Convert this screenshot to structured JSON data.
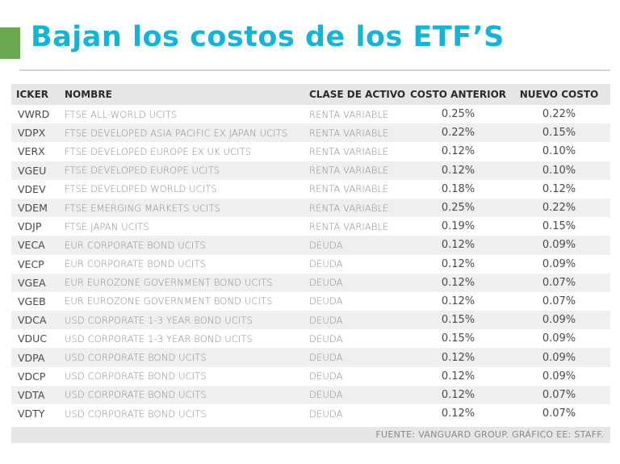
{
  "title": "Bajan los costos de los ETF’S",
  "accent_color": "#6aa84f",
  "title_color": "#12b4d8",
  "source": "FUENTE: VANGUARD GROUP. GRÁFICO EE: STAFF.",
  "chart_data": {
    "type": "table",
    "columns": [
      "ICKER",
      "NOMBRE",
      "CLASE DE ACTIVO",
      "COSTO ANTERIOR",
      "NUEVO COSTO"
    ],
    "rows": [
      [
        "VWRD",
        "FTSE ALL-WORLD UCITS",
        "RENTA VARIABLE",
        "0.25%",
        "0.22%"
      ],
      [
        "VDPX",
        "FTSE DEVELOPED ASIA PACIFIC EX JAPAN UCITS",
        "RENTA VARIABLE",
        "0.22%",
        "0.15%"
      ],
      [
        "VERX",
        "FTSE DEVELOPED EUROPE EX UK UCITS",
        "RENTA VARIABLE",
        "0.12%",
        "0.10%"
      ],
      [
        "VGEU",
        "FTSE DEVELOPED EUROPE UCITS",
        "RENTA VARIABLE",
        "0.12%",
        "0.10%"
      ],
      [
        "VDEV",
        "FTSE DEVELOPED WORLD UCITS",
        "RENTA VARIABLE",
        "0.18%",
        "0.12%"
      ],
      [
        "VDEM",
        "FTSE EMERGING MARKETS UCITS",
        "RENTA VARIABLE",
        "0.25%",
        "0.22%"
      ],
      [
        "VDJP",
        "FTSE JAPAN UCITS",
        "RENTA VARIABLE",
        "0.19%",
        "0.15%"
      ],
      [
        "VECA",
        "EUR CORPORATE BOND UCITS",
        "DEUDA",
        "0.12%",
        "0.09%"
      ],
      [
        "VECP",
        "EUR CORPORATE BOND UCITS",
        "DEUDA",
        "0.12%",
        "0.09%"
      ],
      [
        "VGEA",
        "EUR EUROZONE GOVERNMENT BOND UCITS",
        "DEUDA",
        "0.12%",
        "0.07%"
      ],
      [
        "VGEB",
        "EUR EUROZONE GOVERNMENT BOND UCITS",
        "DEUDA",
        "0.12%",
        "0.07%"
      ],
      [
        "VDCA",
        "USD CORPORATE 1-3 YEAR BOND UCITS",
        "DEUDA",
        "0.15%",
        "0.09%"
      ],
      [
        "VDUC",
        "USD CORPORATE 1-3 YEAR BOND UCITS",
        "DEUDA",
        "0.15%",
        "0.09%"
      ],
      [
        "VDPA",
        "USD CORPORATE BOND UCITS",
        "DEUDA",
        "0.12%",
        "0.09%"
      ],
      [
        "VDCP",
        "USD CORPORATE BOND UCITS",
        "DEUDA",
        "0.12%",
        "0.09%"
      ],
      [
        "VDTA",
        "USD CORPORATE BOND UCITS",
        "DEUDA",
        "0.12%",
        "0.07%"
      ],
      [
        "VDTY",
        "USD CORPORATE BOND UCITS",
        "DEUDA",
        "0.12%",
        "0.07%"
      ]
    ]
  }
}
